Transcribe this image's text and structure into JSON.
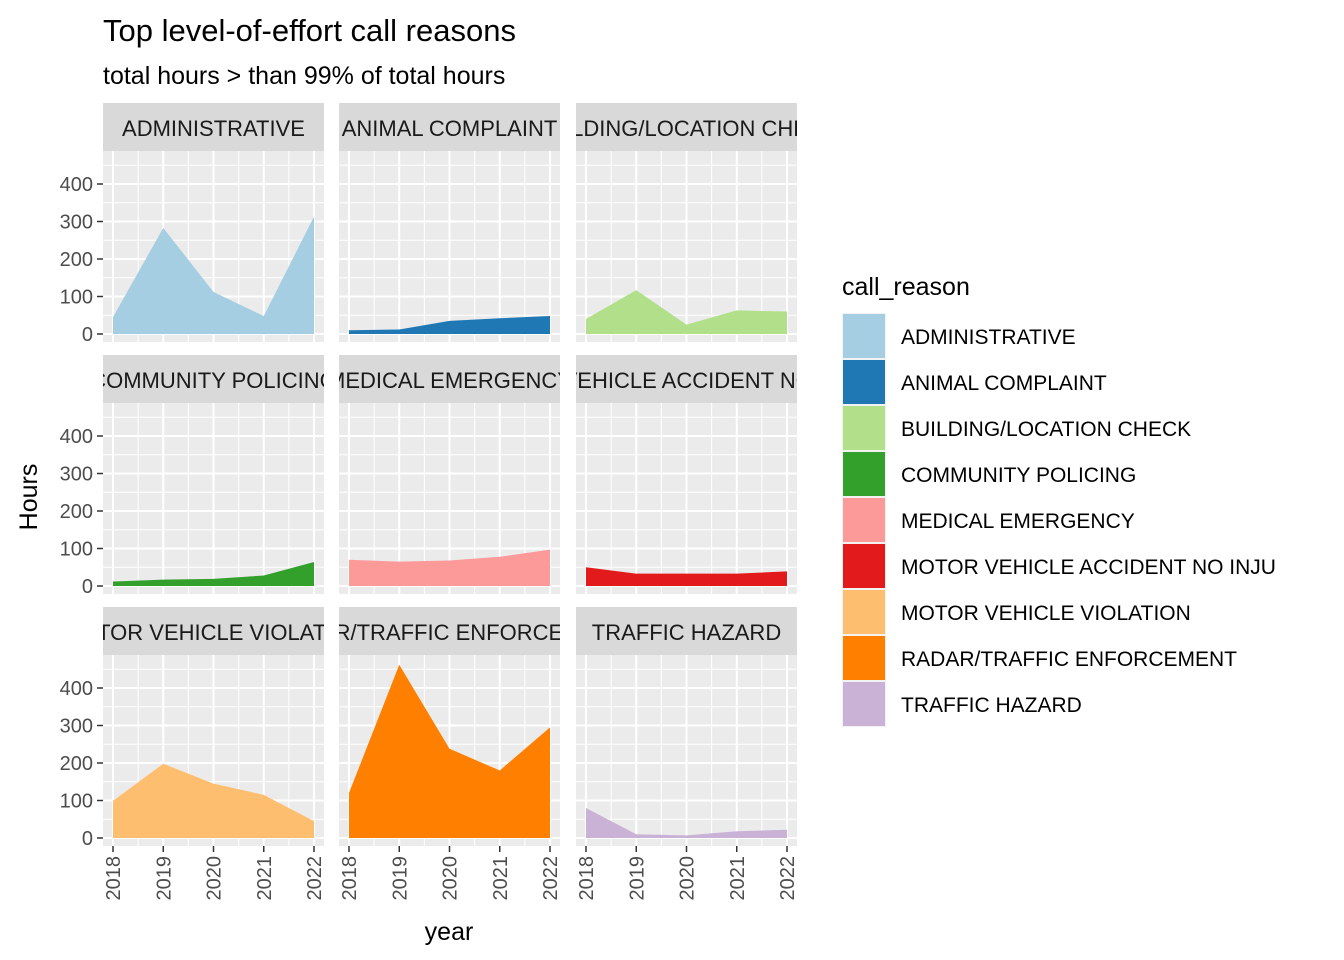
{
  "chart_data": {
    "type": "area",
    "title": "Top level-of-effort call reasons",
    "subtitle": "total hours > than 99% of total hours",
    "xlabel": "year",
    "ylabel": "Hours",
    "x": [
      2018,
      2019,
      2020,
      2021,
      2022
    ],
    "x_tick_labels": [
      "2018",
      "2019",
      "2020",
      "2021",
      "2022"
    ],
    "y_ticks": [
      0,
      100,
      200,
      300,
      400
    ],
    "y_tick_labels": [
      "0",
      "100",
      "200",
      "300",
      "400"
    ],
    "ylim": [
      0,
      470
    ],
    "grid": true,
    "facet_layout": "3x3",
    "legend": {
      "title": "call_reason",
      "position": "right"
    },
    "series": [
      {
        "name": "ADMINISTRATIVE",
        "strip_label": "ADMINISTRATIVE",
        "color": "#A6CEE3",
        "values": [
          45,
          283,
          112,
          48,
          313
        ]
      },
      {
        "name": "ANIMAL COMPLAINT",
        "strip_label": "ANIMAL COMPLAINT",
        "color": "#1F78B4",
        "values": [
          10,
          12,
          35,
          42,
          48
        ]
      },
      {
        "name": "BUILDING/LOCATION CHECK",
        "strip_label": "BUILDING/LOCATION CHECK",
        "color": "#B2DF8A",
        "values": [
          40,
          117,
          25,
          63,
          60
        ]
      },
      {
        "name": "COMMUNITY POLICING",
        "strip_label": "COMMUNITY POLICING",
        "color": "#33A02C",
        "values": [
          12,
          17,
          19,
          28,
          64
        ]
      },
      {
        "name": "MEDICAL EMERGENCY",
        "strip_label": "MEDICAL EMERGENCY",
        "color": "#FB9A99",
        "values": [
          70,
          65,
          68,
          78,
          97
        ]
      },
      {
        "name": "MOTOR VEHICLE ACCIDENT NO INJU",
        "strip_label": "MOTOR VEHICLE ACCIDENT NO INJURY",
        "color": "#E31A1C",
        "values": [
          50,
          33,
          33,
          33,
          39
        ]
      },
      {
        "name": "MOTOR VEHICLE VIOLATION",
        "strip_label": "MOTOR VEHICLE VIOLATION",
        "color": "#FDBF6F",
        "values": [
          99,
          198,
          145,
          115,
          45
        ]
      },
      {
        "name": "RADAR/TRAFFIC ENFORCEMENT",
        "strip_label": "RADAR/TRAFFIC ENFORCEMENT",
        "color": "#FF7F00",
        "values": [
          120,
          462,
          238,
          180,
          295
        ]
      },
      {
        "name": "TRAFFIC HAZARD",
        "strip_label": "TRAFFIC HAZARD",
        "color": "#CAB2D6",
        "values": [
          80,
          10,
          7,
          18,
          22
        ]
      }
    ]
  }
}
